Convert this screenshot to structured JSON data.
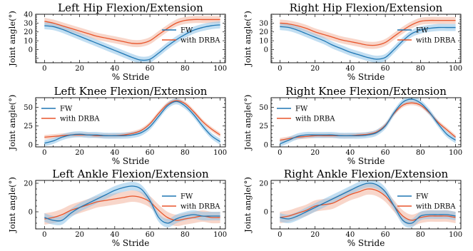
{
  "colors": {
    "fw": "#1f77b4",
    "drba": "#e8552b",
    "fw_band": "#8ec3e8",
    "drba_band": "#f2b49e"
  },
  "chart_data": [
    {
      "type": "line",
      "title": "Left Hip Flexion/Extension",
      "xlabel": "% Stride",
      "ylabel": "Joint angle(°)",
      "xlim": [
        -5,
        103
      ],
      "ylim": [
        -15,
        40
      ],
      "xticks": [
        0,
        20,
        40,
        60,
        80,
        100
      ],
      "yticks": [
        0,
        10,
        20,
        30,
        40
      ],
      "legend": "right",
      "x": [
        0,
        5,
        10,
        15,
        20,
        25,
        30,
        35,
        40,
        45,
        50,
        55,
        60,
        65,
        70,
        75,
        80,
        85,
        90,
        95,
        100
      ],
      "series": [
        {
          "name": "FW",
          "values": [
            27,
            26,
            23,
            19,
            15,
            11,
            7,
            3,
            -1,
            -5,
            -9,
            -12,
            -11,
            -4,
            4,
            11,
            17,
            22,
            25,
            27,
            28
          ],
          "band": 4
        },
        {
          "name": "with DRBA",
          "values": [
            32,
            30,
            27,
            24,
            21,
            18,
            15,
            13,
            11,
            9,
            7,
            7,
            10,
            17,
            24,
            30,
            33,
            34,
            34,
            34,
            34
          ],
          "band": 4
        }
      ]
    },
    {
      "type": "line",
      "title": "Right Hip Flexion/Extension",
      "xlabel": "% Stride",
      "ylabel": "Joint angle(°)",
      "xlim": [
        -5,
        103
      ],
      "ylim": [
        -15,
        40
      ],
      "xticks": [
        0,
        20,
        40,
        60,
        80,
        100
      ],
      "yticks": [
        0,
        10,
        20,
        30
      ],
      "legend": "right",
      "x": [
        0,
        5,
        10,
        15,
        20,
        25,
        30,
        35,
        40,
        45,
        50,
        55,
        60,
        65,
        70,
        75,
        80,
        85,
        90,
        95,
        100
      ],
      "series": [
        {
          "name": "FW",
          "values": [
            26,
            25,
            22,
            18,
            14,
            10,
            5,
            1,
            -3,
            -6,
            -9,
            -11,
            -9,
            0,
            10,
            18,
            22,
            24,
            25,
            25,
            25
          ],
          "band": 4
        },
        {
          "name": "with DRBA",
          "values": [
            30,
            29,
            27,
            24,
            20,
            17,
            14,
            11,
            9,
            7,
            5,
            5,
            8,
            15,
            22,
            28,
            32,
            33,
            33,
            33,
            33
          ],
          "band": 4
        }
      ]
    },
    {
      "type": "line",
      "title": "Left Knee Flexion/Extension",
      "xlabel": "% Stride",
      "ylabel": "Joint angle(°)",
      "xlim": [
        -5,
        103
      ],
      "ylim": [
        -3,
        63
      ],
      "xticks": [
        0,
        20,
        40,
        60,
        80,
        100
      ],
      "yticks": [
        0,
        25,
        50
      ],
      "legend": "left",
      "x": [
        0,
        5,
        10,
        15,
        20,
        25,
        30,
        35,
        40,
        45,
        50,
        55,
        60,
        65,
        70,
        75,
        80,
        85,
        90,
        95,
        100
      ],
      "series": [
        {
          "name": "FW",
          "values": [
            2,
            5,
            10,
            13,
            14,
            13,
            13,
            12,
            12,
            12,
            13,
            16,
            24,
            38,
            52,
            58,
            52,
            40,
            25,
            12,
            4
          ],
          "band": 4
        },
        {
          "name": "with DRBA",
          "values": [
            10,
            11,
            12,
            13,
            13,
            13,
            12,
            12,
            12,
            13,
            15,
            19,
            28,
            42,
            54,
            59,
            55,
            44,
            31,
            21,
            13
          ],
          "band": 3
        }
      ]
    },
    {
      "type": "line",
      "title": "Right Knee Flexion/Extension",
      "xlabel": "% Stride",
      "ylabel": "Joint angle(°)",
      "xlim": [
        -5,
        103
      ],
      "ylim": [
        -3,
        63
      ],
      "xticks": [
        0,
        20,
        40,
        60,
        80,
        100
      ],
      "yticks": [
        0,
        25,
        50
      ],
      "legend": "left",
      "x": [
        0,
        5,
        10,
        15,
        20,
        25,
        30,
        35,
        40,
        45,
        50,
        55,
        60,
        65,
        70,
        75,
        80,
        85,
        90,
        95,
        100
      ],
      "series": [
        {
          "name": "FW",
          "values": [
            1,
            6,
            11,
            13,
            13,
            13,
            13,
            12,
            12,
            12,
            13,
            16,
            25,
            43,
            57,
            61,
            56,
            44,
            28,
            14,
            6
          ],
          "band": 4
        },
        {
          "name": "with DRBA",
          "values": [
            6,
            8,
            10,
            11,
            12,
            12,
            12,
            12,
            12,
            13,
            14,
            17,
            26,
            42,
            53,
            56,
            53,
            43,
            30,
            20,
            10
          ],
          "band": 3
        }
      ]
    },
    {
      "type": "line",
      "title": "Left Ankle Flexion/Extension",
      "xlabel": "% Stride",
      "ylabel": "Joint angle(°)",
      "xlim": [
        -5,
        103
      ],
      "ylim": [
        -12,
        22
      ],
      "xticks": [
        0,
        20,
        40,
        60,
        80,
        100
      ],
      "yticks": [
        0,
        20
      ],
      "legend": "right",
      "x": [
        0,
        5,
        10,
        15,
        20,
        25,
        30,
        35,
        40,
        45,
        50,
        55,
        60,
        65,
        70,
        75,
        80,
        85,
        90,
        95,
        100
      ],
      "series": [
        {
          "name": "FW",
          "values": [
            -4,
            -6,
            -6,
            -1,
            3,
            6,
            9,
            12,
            15,
            17,
            18,
            16,
            8,
            -4,
            -8,
            -5,
            -3,
            -2,
            -3,
            -3,
            -3
          ],
          "band": 3
        },
        {
          "name": "with DRBA",
          "values": [
            -5,
            -4,
            -2,
            1,
            3,
            5,
            7,
            8,
            9,
            10,
            11,
            10,
            7,
            1,
            -4,
            -6,
            -5,
            -4,
            -3,
            -4,
            -4
          ],
          "band": 4
        }
      ]
    },
    {
      "type": "line",
      "title": "Right Ankle Flexion/Extension",
      "xlabel": "% Stride",
      "ylabel": "Joint angle(°)",
      "xlim": [
        -5,
        103
      ],
      "ylim": [
        -12,
        22
      ],
      "xticks": [
        0,
        20,
        40,
        60,
        80,
        100
      ],
      "yticks": [
        0,
        20
      ],
      "legend": "right",
      "x": [
        0,
        5,
        10,
        15,
        20,
        25,
        30,
        35,
        40,
        45,
        50,
        55,
        60,
        65,
        70,
        75,
        80,
        85,
        90,
        95,
        100
      ],
      "series": [
        {
          "name": "FW",
          "values": [
            -4,
            -5,
            -3,
            0,
            3,
            6,
            9,
            12,
            15,
            18,
            20,
            19,
            14,
            4,
            -6,
            -8,
            -3,
            -2,
            -2,
            -2,
            -3
          ],
          "band": 3
        },
        {
          "name": "with DRBA",
          "values": [
            -4,
            -3,
            -1,
            1,
            4,
            5,
            6,
            9,
            12,
            14,
            16,
            15,
            11,
            4,
            -3,
            -6,
            -4,
            -3,
            -3,
            -3,
            -4
          ],
          "band": 4
        }
      ]
    }
  ]
}
